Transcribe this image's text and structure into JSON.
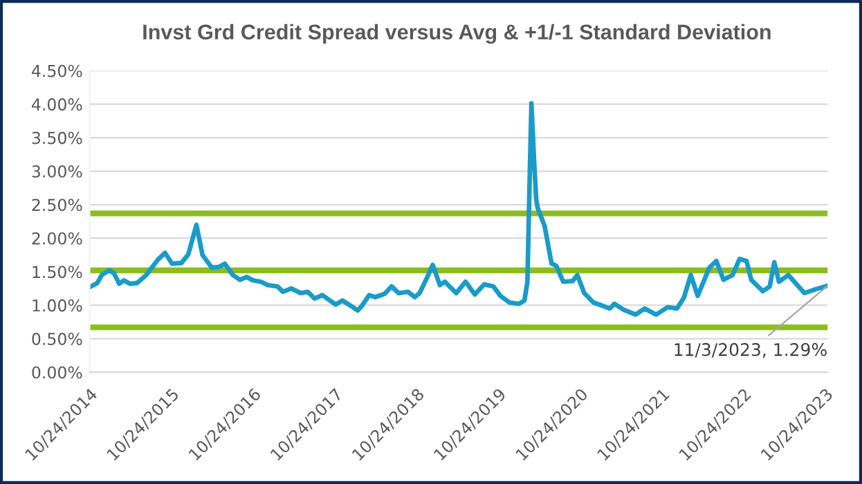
{
  "chart_data": {
    "type": "line",
    "title": "Invst Grd Credit Spread versus Avg & +1/-1 Standard Deviation",
    "x": [
      "2014-10-24",
      "2014-11-27",
      "2014-12-17",
      "2015-01-19",
      "2015-02-09",
      "2015-03-05",
      "2015-03-26",
      "2015-04-22",
      "2015-05-23",
      "2015-07-04",
      "2015-08-25",
      "2015-09-26",
      "2015-10-27",
      "2015-12-08",
      "2016-01-08",
      "2016-02-13",
      "2016-03-11",
      "2016-04-22",
      "2016-05-23",
      "2016-06-19",
      "2016-07-25",
      "2016-08-25",
      "2016-09-25",
      "2016-10-23",
      "2016-11-27",
      "2016-12-28",
      "2017-02-09",
      "2017-03-06",
      "2017-04-13",
      "2017-05-24",
      "2017-06-24",
      "2017-07-25",
      "2017-08-29",
      "2017-10-27",
      "2017-11-27",
      "2018-01-08",
      "2018-02-02",
      "2018-02-19",
      "2018-03-26",
      "2018-04-22",
      "2018-06-03",
      "2018-07-04",
      "2018-08-05",
      "2018-09-15",
      "2018-10-16",
      "2018-11-06",
      "2018-12-08",
      "2019-01-04",
      "2019-02-05",
      "2019-02-27",
      "2019-04-19",
      "2019-05-31",
      "2019-07-11",
      "2019-08-22",
      "2019-10-02",
      "2019-11-02",
      "2019-12-13",
      "2020-01-24",
      "2020-02-18",
      "2020-03-02",
      "2020-03-12",
      "2020-03-20",
      "2020-03-31",
      "2020-04-10",
      "2020-04-17",
      "2020-05-18",
      "2020-06-18",
      "2020-07-09",
      "2020-08-09",
      "2020-09-20",
      "2020-10-11",
      "2020-11-11",
      "2020-12-22",
      "2021-02-02",
      "2021-03-05",
      "2021-03-26",
      "2021-05-07",
      "2021-06-28",
      "2021-08-08",
      "2021-09-28",
      "2021-11-19",
      "2021-12-30",
      "2022-01-30",
      "2022-03-02",
      "2022-04-02",
      "2022-05-24",
      "2022-06-24",
      "2022-07-26",
      "2022-09-05",
      "2022-10-06",
      "2022-11-06",
      "2022-11-27",
      "2023-01-18",
      "2023-02-18",
      "2023-03-10",
      "2023-03-31",
      "2023-05-12",
      "2023-07-23",
      "2023-09-13",
      "2023-11-03"
    ],
    "series": [
      {
        "color": "#1a9bc8",
        "values": [
          1.27,
          1.33,
          1.45,
          1.52,
          1.48,
          1.32,
          1.37,
          1.32,
          1.33,
          1.45,
          1.68,
          1.78,
          1.62,
          1.63,
          1.76,
          2.2,
          1.75,
          1.56,
          1.57,
          1.62,
          1.45,
          1.38,
          1.42,
          1.37,
          1.35,
          1.3,
          1.28,
          1.2,
          1.25,
          1.18,
          1.2,
          1.1,
          1.15,
          1.01,
          1.07,
          0.98,
          0.92,
          0.98,
          1.15,
          1.12,
          1.17,
          1.28,
          1.18,
          1.2,
          1.12,
          1.18,
          1.4,
          1.6,
          1.3,
          1.35,
          1.18,
          1.35,
          1.16,
          1.31,
          1.28,
          1.14,
          1.04,
          1.02,
          1.07,
          1.35,
          2.87,
          4.01,
          3.21,
          2.59,
          2.45,
          2.18,
          1.62,
          1.59,
          1.35,
          1.36,
          1.45,
          1.18,
          1.04,
          0.99,
          0.95,
          1.02,
          0.93,
          0.86,
          0.95,
          0.86,
          0.97,
          0.95,
          1.11,
          1.45,
          1.14,
          1.56,
          1.66,
          1.38,
          1.45,
          1.69,
          1.66,
          1.38,
          1.21,
          1.28,
          1.64,
          1.35,
          1.45,
          1.18,
          1.24,
          1.29
        ]
      }
    ],
    "xlim": [
      "2014-10-24",
      "2023-11-03"
    ],
    "xticks": [
      {
        "value": "2014-10-24",
        "label": "10/24/2014"
      },
      {
        "value": "2015-10-24",
        "label": "10/24/2015"
      },
      {
        "value": "2016-10-24",
        "label": "10/24/2016"
      },
      {
        "value": "2017-10-24",
        "label": "10/24/2017"
      },
      {
        "value": "2018-10-24",
        "label": "10/24/2018"
      },
      {
        "value": "2019-10-24",
        "label": "10/24/2019"
      },
      {
        "value": "2020-10-24",
        "label": "10/24/2020"
      },
      {
        "value": "2021-10-24",
        "label": "10/24/2021"
      },
      {
        "value": "2022-10-24",
        "label": "10/24/2022"
      },
      {
        "value": "2023-10-24",
        "label": "10/24/2023"
      }
    ],
    "ylim": [
      0,
      4.5
    ],
    "yticks": [
      {
        "value": 0,
        "label": "0.00%"
      },
      {
        "value": 0.5,
        "label": "0.50%"
      },
      {
        "value": 1,
        "label": "1.00%"
      },
      {
        "value": 1.5,
        "label": "1.50%"
      },
      {
        "value": 2,
        "label": "2.00%"
      },
      {
        "value": 2.5,
        "label": "2.50%"
      },
      {
        "value": 3,
        "label": "3.00%"
      },
      {
        "value": 3.5,
        "label": "3.50%"
      },
      {
        "value": 4,
        "label": "4.00%"
      },
      {
        "value": 4.5,
        "label": "4.50%"
      }
    ],
    "ref_lines": [
      {
        "axis": "y",
        "value": 2.37,
        "color": "#8cbd1f"
      },
      {
        "axis": "y",
        "value": 1.52,
        "color": "#8cbd1f"
      },
      {
        "axis": "y",
        "value": 0.67,
        "color": "#8cbd1f"
      }
    ],
    "annotations": [
      {
        "text": "11/3/2023, 1.29%",
        "x": "2023-11-03",
        "y": 1.29
      }
    ],
    "grid": "y",
    "line_style": "solid",
    "marker": "none"
  }
}
